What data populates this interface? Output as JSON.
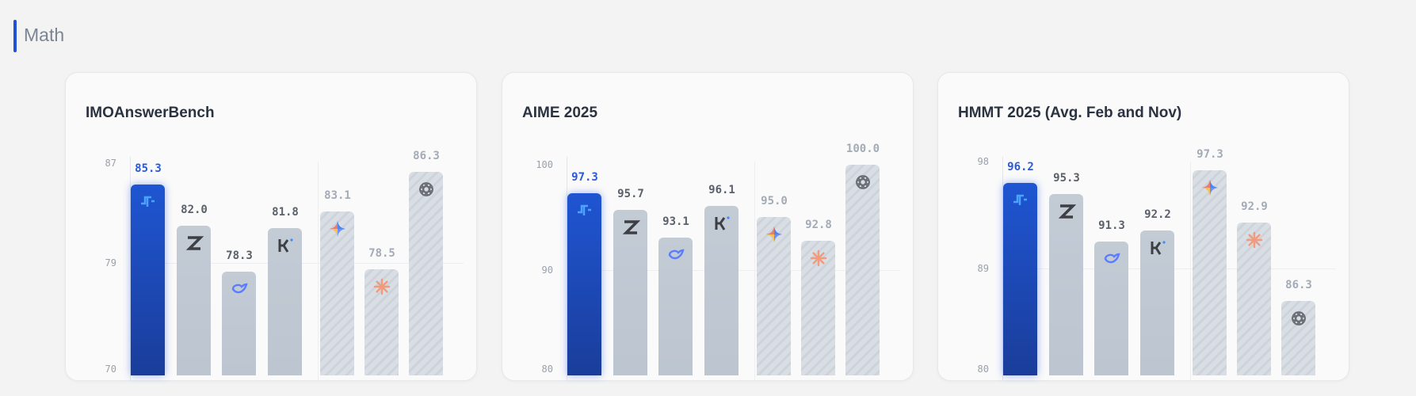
{
  "section": {
    "title": "Math",
    "accent": "#1f52d6"
  },
  "chart_data": [
    {
      "type": "bar",
      "title": "IMOAnswerBench",
      "ylim": [
        70,
        87.3
      ],
      "ticks": [
        70,
        79,
        87
      ],
      "bars": [
        {
          "icon": "custom-logo-icon",
          "value": 85.3,
          "style": "primary"
        },
        {
          "icon": "z-logo-icon",
          "value": 82.0,
          "style": "open"
        },
        {
          "icon": "whale-logo-icon",
          "value": 78.3,
          "style": "open"
        },
        {
          "icon": "k-logo-icon",
          "value": 81.8,
          "style": "open"
        },
        {
          "icon": "sparkle-logo-icon",
          "value": 83.1,
          "style": "closed"
        },
        {
          "icon": "asterisk-logo-icon",
          "value": 78.5,
          "style": "closed"
        },
        {
          "icon": "knot-logo-icon",
          "value": 86.3,
          "style": "closed"
        }
      ]
    },
    {
      "type": "bar",
      "title": "AIME 2025",
      "ylim": [
        80,
        100.5
      ],
      "ticks": [
        80,
        90,
        100
      ],
      "bars": [
        {
          "icon": "custom-logo-icon",
          "value": 97.3,
          "style": "primary"
        },
        {
          "icon": "z-logo-icon",
          "value": 95.7,
          "style": "open"
        },
        {
          "icon": "whale-logo-icon",
          "value": 93.1,
          "style": "open"
        },
        {
          "icon": "k-logo-icon",
          "value": 96.1,
          "style": "open"
        },
        {
          "icon": "sparkle-logo-icon",
          "value": 95.0,
          "style": "closed"
        },
        {
          "icon": "asterisk-logo-icon",
          "value": 92.8,
          "style": "closed"
        },
        {
          "icon": "knot-logo-icon",
          "value": 100.0,
          "style": "closed"
        }
      ]
    },
    {
      "type": "bar",
      "title": "HMMT 2025 (Avg. Feb and Nov)",
      "ylim": [
        80,
        98.2
      ],
      "ticks": [
        80,
        89,
        98
      ],
      "bars": [
        {
          "icon": "custom-logo-icon",
          "value": 96.2,
          "style": "primary"
        },
        {
          "icon": "z-logo-icon",
          "value": 95.3,
          "style": "open"
        },
        {
          "icon": "whale-logo-icon",
          "value": 91.3,
          "style": "open"
        },
        {
          "icon": "k-logo-icon",
          "value": 92.2,
          "style": "open"
        },
        {
          "icon": "sparkle-logo-icon",
          "value": 97.3,
          "style": "closed"
        },
        {
          "icon": "asterisk-logo-icon",
          "value": 92.9,
          "style": "closed"
        },
        {
          "icon": "knot-logo-icon",
          "value": 86.3,
          "style": "closed"
        }
      ]
    }
  ],
  "colors": {
    "primary_label": "#2a5bd7",
    "open_label": "#5a616b",
    "closed_label": "#a3abb6"
  }
}
